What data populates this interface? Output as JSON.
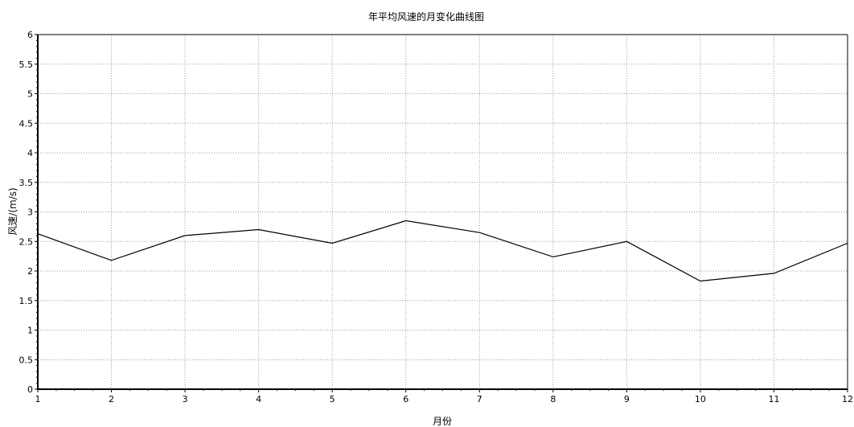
{
  "chart_data": {
    "type": "line",
    "title": "年平均风速的月变化曲线图",
    "xlabel": "月份",
    "ylabel": "风速/(m/s)",
    "x": [
      1,
      2,
      3,
      4,
      5,
      6,
      7,
      8,
      9,
      10,
      11,
      12
    ],
    "xlim": [
      1,
      12
    ],
    "ylim": [
      0,
      6
    ],
    "xticks": [
      "1",
      "2",
      "3",
      "4",
      "5",
      "6",
      "7",
      "8",
      "9",
      "10",
      "11",
      "12"
    ],
    "yticks": [
      "0",
      "0.5",
      "1",
      "1.5",
      "2",
      "2.5",
      "3",
      "3.5",
      "4",
      "4.5",
      "5",
      "5.5",
      "6"
    ],
    "grid": true,
    "series": [
      {
        "values": [
          2.63,
          2.18,
          2.6,
          2.7,
          2.47,
          2.85,
          2.65,
          2.24,
          2.5,
          1.83,
          1.96,
          2.47
        ]
      }
    ],
    "colors": {
      "line": "#000000",
      "grid": "#9a9a9a",
      "axis": "#000000"
    }
  }
}
